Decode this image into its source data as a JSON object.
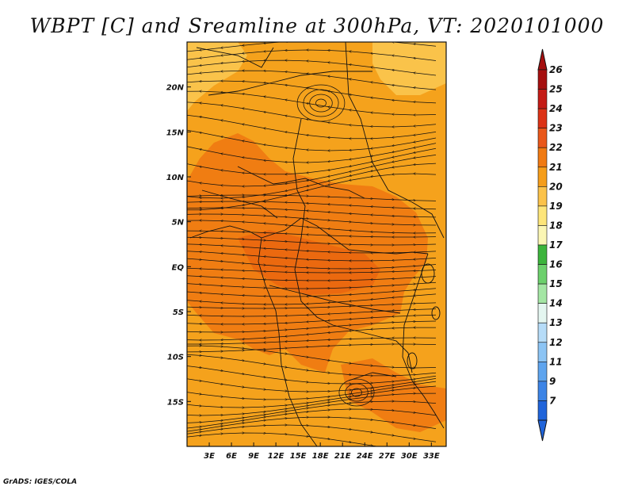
{
  "title": "WBPT [C] and Sreamline at 300hPa, VT: 2020101000",
  "credit": "GrADS: IGES/COLA",
  "map": {
    "lon_range": [
      0,
      35
    ],
    "lat_range": [
      -20,
      25
    ],
    "lon_ticks": [
      "3E",
      "6E",
      "9E",
      "12E",
      "15E",
      "18E",
      "21E",
      "24E",
      "27E",
      "30E",
      "33E"
    ],
    "lat_ticks": [
      "20N",
      "15N",
      "10N",
      "5N",
      "EQ",
      "5S",
      "10S",
      "15S"
    ],
    "lon_tick_values": [
      3,
      6,
      9,
      12,
      15,
      18,
      21,
      24,
      27,
      30,
      33
    ],
    "lat_tick_values": [
      20,
      15,
      10,
      5,
      0,
      -5,
      -10,
      -15
    ],
    "field_colors": {
      "level_21": "#f5a21c",
      "level_22": "#f07d12",
      "level_23": "#e85a0c",
      "level_20": "#fac34a"
    }
  },
  "colorbar": {
    "labels": [
      "26",
      "25",
      "24",
      "23",
      "22",
      "21",
      "20",
      "19",
      "18",
      "17",
      "16",
      "15",
      "14",
      "13",
      "12",
      "11",
      "9",
      "7"
    ],
    "colors": [
      "#a50f0f",
      "#c41b16",
      "#dc3216",
      "#e9571a",
      "#f07a12",
      "#f59d1a",
      "#fbc24a",
      "#fde57a",
      "#fbf6b4",
      "#3cb43c",
      "#6cd06c",
      "#a4e6a4",
      "#e4f6f0",
      "#b6dcf8",
      "#8cc4f4",
      "#5ea4ee",
      "#3c84e6",
      "#2064da"
    ],
    "top_arrow_color": "#a50f0f",
    "bottom_arrow_color": "#2064da"
  }
}
